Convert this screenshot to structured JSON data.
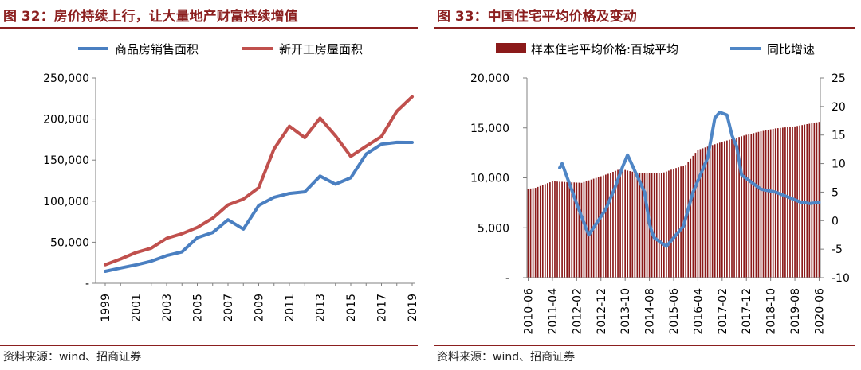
{
  "chart_data": [
    {
      "type": "line",
      "title": "图 32：房价持续上行，让大量地产财富持续增值",
      "source": "资料来源：wind、招商证券",
      "x": [
        1999,
        2000,
        2001,
        2002,
        2003,
        2004,
        2005,
        2006,
        2007,
        2008,
        2009,
        2010,
        2011,
        2012,
        2013,
        2014,
        2015,
        2016,
        2017,
        2018,
        2019
      ],
      "x_tick_labels": [
        "1999",
        "2001",
        "2003",
        "2005",
        "2007",
        "2009",
        "2011",
        "2013",
        "2015",
        "2017",
        "2019"
      ],
      "ylim": [
        0,
        250000
      ],
      "y_tick_labels": [
        "-",
        "50,000",
        "100,000",
        "150,000",
        "200,000",
        "250,000"
      ],
      "legend_position": "top",
      "series": [
        {
          "name": "商品房销售面积",
          "color": "#4a7fc1",
          "values": [
            14557,
            18637,
            22412,
            26808,
            33718,
            38231,
            55486,
            61857,
            77355,
            65970,
            94755,
            104765,
            109366,
            111304,
            130551,
            120649,
            128495,
            157349,
            169408,
            171654,
            171558
          ]
        },
        {
          "name": "新开工房屋面积",
          "color": "#c0504d",
          "values": [
            22579,
            29583,
            37394,
            42801,
            54708,
            60414,
            68064,
            79253,
            95402,
            102553,
            116422,
            163647,
            191237,
            177334,
            201208,
            179592,
            154454,
            166928,
            178654,
            209537,
            227154
          ]
        }
      ]
    },
    {
      "type": "bar+line",
      "title": "图 33：中国住宅平均价格及变动",
      "source": "资料来源：wind、招商证券",
      "x_tick_labels": [
        "2010-06",
        "2011-04",
        "2012-02",
        "2012-12",
        "2013-10",
        "2014-08",
        "2015-06",
        "2016-04",
        "2017-02",
        "2017-12",
        "2018-10",
        "2019-08",
        "2020-06"
      ],
      "ylim_left": [
        0,
        20000
      ],
      "ylim_right": [
        -10,
        25
      ],
      "y_tick_labels_left": [
        "-",
        "5,000",
        "10,000",
        "15,000",
        "20,000"
      ],
      "y_tick_labels_right": [
        "-10",
        "-5",
        "0",
        "5",
        "10",
        "15",
        "20",
        "25"
      ],
      "legend_position": "top",
      "series": [
        {
          "name": "样本住宅平均价格:百城平均",
          "color": "#8b1a1a",
          "axis": "left",
          "knots_index": [
            0,
            3,
            10,
            22,
            33,
            38,
            45,
            55,
            60,
            65,
            70,
            80,
            90,
            95,
            102,
            110,
            120
          ],
          "knots_value": [
            8900,
            9000,
            9650,
            9500,
            10400,
            10900,
            10500,
            10450,
            10900,
            11300,
            12800,
            13600,
            14300,
            14600,
            14950,
            15150,
            15600
          ]
        },
        {
          "name": "同比增速",
          "color": "#4f86c6",
          "axis": "right",
          "knots_index": [
            0,
            10,
            12,
            14,
            20,
            24,
            25,
            32,
            36,
            39,
            41,
            48,
            50,
            51,
            52,
            57,
            64,
            65,
            68,
            73,
            74,
            77,
            79,
            82,
            84,
            86,
            88,
            96,
            102,
            108,
            112,
            116,
            120
          ],
          "knots_value": [
            null,
            null,
            8.5,
            10,
            3,
            -1.5,
            -2.5,
            2,
            6,
            9.5,
            11.5,
            5,
            -0.5,
            -2,
            -3,
            -4.5,
            -1,
            0.5,
            5,
            10,
            11,
            18,
            19,
            18.5,
            15,
            13,
            8,
            5.5,
            5,
            4,
            3.3,
            3,
            3.2
          ]
        }
      ]
    }
  ]
}
